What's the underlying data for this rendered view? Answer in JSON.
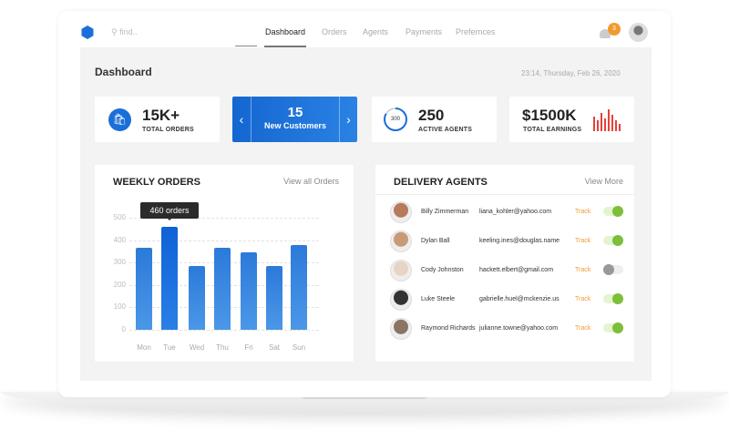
{
  "header": {
    "search_placeholder": "find..",
    "nav": [
      "Dashboard",
      "Orders",
      "Agents",
      "Payments",
      "Prefernces"
    ],
    "active": "Dashboard",
    "notification_count": "3"
  },
  "page": {
    "title": "Dashboard",
    "datetime": "23:14, Thursday, Feb 26, 2020"
  },
  "stats": {
    "orders": {
      "value": "15K+",
      "label": "TOTAL ORDERS"
    },
    "customers": {
      "value": "15",
      "label": "New Customers"
    },
    "agents": {
      "ring": "300",
      "value": "250",
      "label": "ACTIVE AGENTS",
      "ring_fraction": 0.83
    },
    "earnings": {
      "value": "$1500K",
      "label": "TOTAL EARNINGS"
    }
  },
  "colors": {
    "accent": "#1a6fd8",
    "track": "#f39a2e",
    "toggle_on": "#7cbf3a"
  },
  "weekly": {
    "title": "WEEKLY ORDERS",
    "link": "View all Orders",
    "tooltip": "460 orders"
  },
  "chart_data": {
    "type": "bar",
    "categories": [
      "Mon",
      "Tue",
      "Wed",
      "Thu",
      "Fri",
      "Sat",
      "Sun"
    ],
    "values": [
      365,
      460,
      285,
      365,
      345,
      285,
      380
    ],
    "yticks": [
      "0",
      "100",
      "200",
      "300",
      "400",
      "500"
    ],
    "ylim": [
      0,
      500
    ],
    "grid": true,
    "highlight": "Tue"
  },
  "agents": {
    "title": "DELIVERY AGENTS",
    "link": "View More",
    "track_label": "Track",
    "rows": [
      {
        "name": "Billy Zimmerman",
        "email": "liana_kohler@yahoo.com",
        "on": true
      },
      {
        "name": "Dylan Ball",
        "email": "keeling.ines@douglas.name",
        "on": true
      },
      {
        "name": "Cody Johnston",
        "email": "hackett.elbert@gmail.com",
        "on": false
      },
      {
        "name": "Luke Steele",
        "email": "gabrielle.huel@mckenzie.us",
        "on": true
      },
      {
        "name": "Raymond Richards",
        "email": "julianne.towne@yahoo.com",
        "on": true
      }
    ]
  }
}
